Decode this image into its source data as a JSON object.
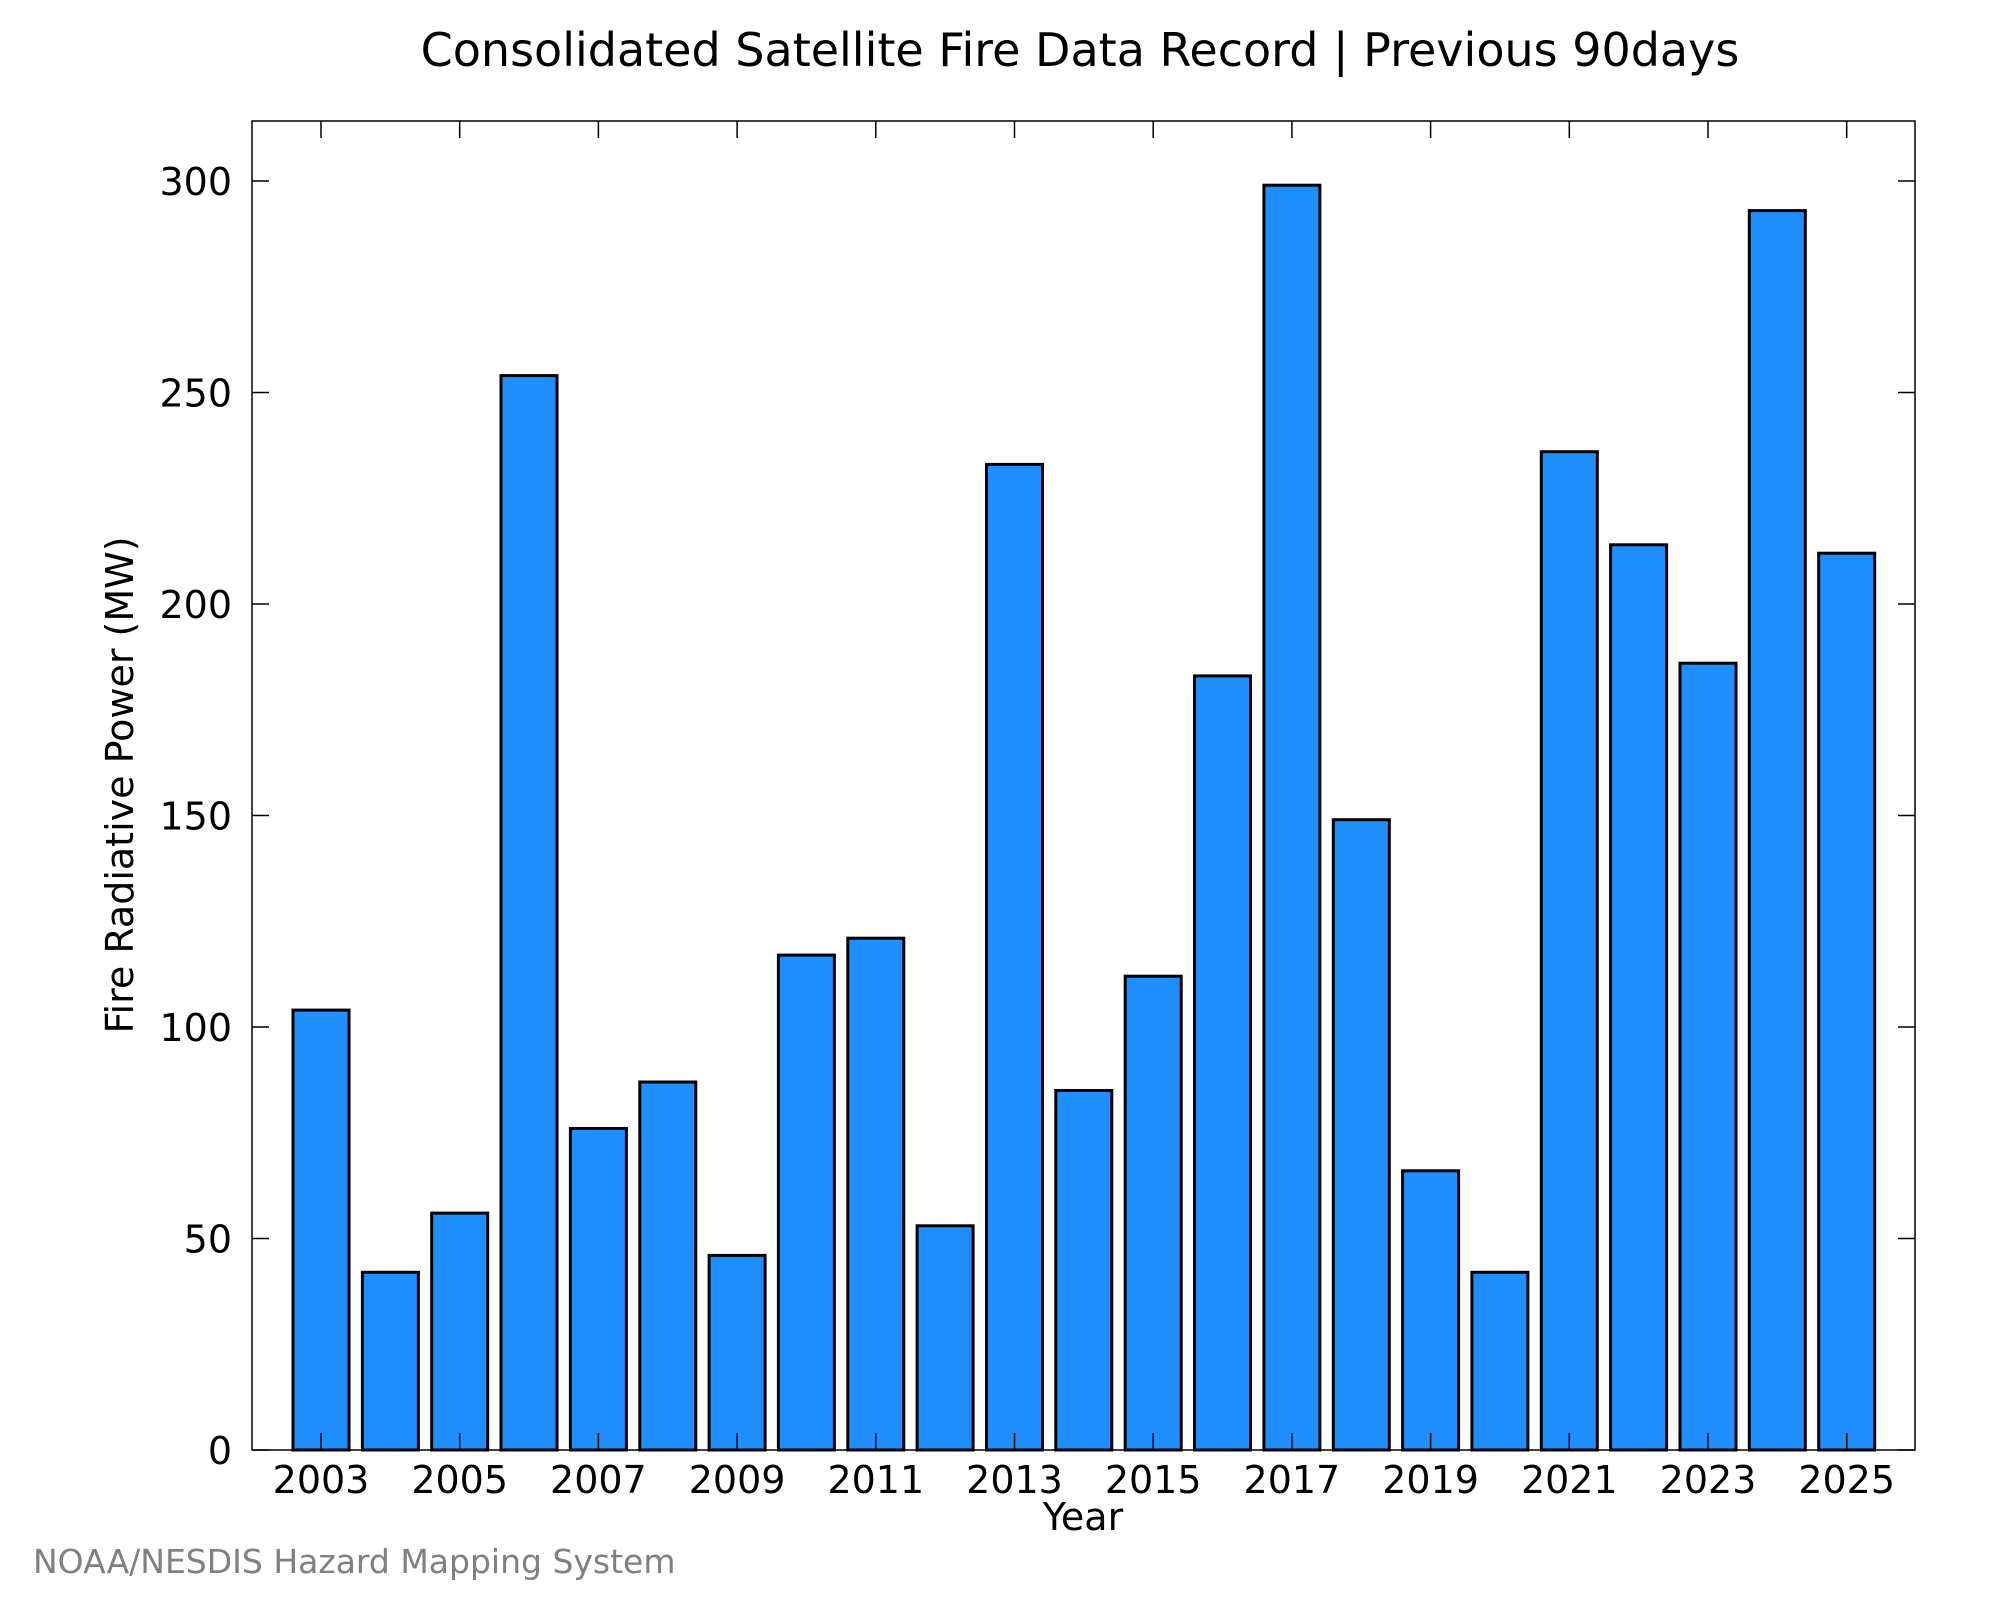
{
  "chart_data": {
    "type": "bar",
    "title": "Consolidated Satellite Fire Data Record | Previous 90days",
    "xlabel": "Year",
    "ylabel": "Fire Radiative Power (MW)",
    "categories": [
      "2003",
      "2004",
      "2005",
      "2006",
      "2007",
      "2008",
      "2009",
      "2010",
      "2011",
      "2012",
      "2013",
      "2014",
      "2015",
      "2016",
      "2017",
      "2018",
      "2019",
      "2020",
      "2021",
      "2022",
      "2023",
      "2024",
      "2025"
    ],
    "values": [
      104,
      42,
      56,
      254,
      76,
      87,
      46,
      117,
      121,
      53,
      233,
      85,
      112,
      183,
      299,
      149,
      66,
      42,
      236,
      214,
      186,
      293,
      212
    ],
    "x_tick_labels": [
      "2003",
      "2005",
      "2007",
      "2009",
      "2011",
      "2013",
      "2015",
      "2017",
      "2019",
      "2021",
      "2023",
      "2025"
    ],
    "y_ticks": [
      0,
      50,
      100,
      150,
      200,
      250,
      300
    ],
    "ylim": [
      0,
      314
    ],
    "grid": false,
    "bar_color": "#1f8fff",
    "bar_edge_color": "#000000",
    "credit": "NOAA/NESDIS Hazard Mapping System"
  }
}
